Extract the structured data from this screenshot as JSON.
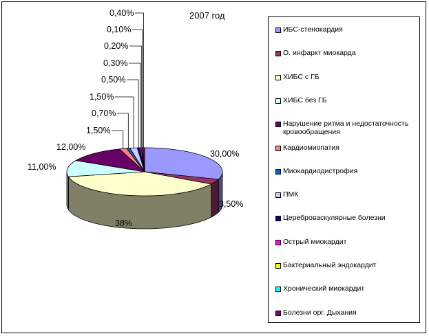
{
  "chart_data": {
    "type": "pie",
    "title": "2007 год",
    "legend_position": "right",
    "slices": [
      {
        "name": "ИБС-стенокардия",
        "value": 30.0,
        "label": "30,00%",
        "color": "#9999ff",
        "side": "#4c4c80"
      },
      {
        "name": "О. инфаркт миокарда",
        "value": 3.5,
        "label": "3,50%",
        "color": "#993366",
        "side": "#4d1a33"
      },
      {
        "name": "ХИБС с ГБ",
        "value": 38.0,
        "label": "38%",
        "color": "#ffffcc",
        "side": "#808066"
      },
      {
        "name": "ХИБС без ГБ",
        "value": 11.0,
        "label": "11,00%",
        "color": "#ccffff",
        "side": "#668080"
      },
      {
        "name": "Нарушение ритма и недостаточность кровообращения",
        "value": 12.0,
        "label": "12,00%",
        "color": "#660066",
        "side": "#330033"
      },
      {
        "name": "Кардиомиопатия",
        "value": 1.5,
        "label": "1,50%",
        "color": "#ff8080",
        "side": "#804040"
      },
      {
        "name": "Миокардиодистрофия",
        "value": 0.7,
        "label": "0,70%",
        "color": "#0066cc",
        "side": "#003366"
      },
      {
        "name": "ПМК",
        "value": 1.5,
        "label": "1,50%",
        "color": "#ccccff",
        "side": "#666680"
      },
      {
        "name": "Цереброваскулярные болезни",
        "value": 0.5,
        "label": "0,50%",
        "color": "#000080",
        "side": "#000040"
      },
      {
        "name": "Острый миокардит",
        "value": 0.3,
        "label": "0,30%",
        "color": "#ff00ff",
        "side": "#800080"
      },
      {
        "name": "Бактериальный эндокардит",
        "value": 0.2,
        "label": "0,20%",
        "color": "#ffff00",
        "side": "#808000"
      },
      {
        "name": "Хронический миокардит",
        "value": 0.1,
        "label": "0,10%",
        "color": "#00ffff",
        "side": "#008080"
      },
      {
        "name": "Болезни орг. Дыхания",
        "value": 0.4,
        "label": "0,40%",
        "color": "#800080",
        "side": "#400040"
      }
    ]
  }
}
